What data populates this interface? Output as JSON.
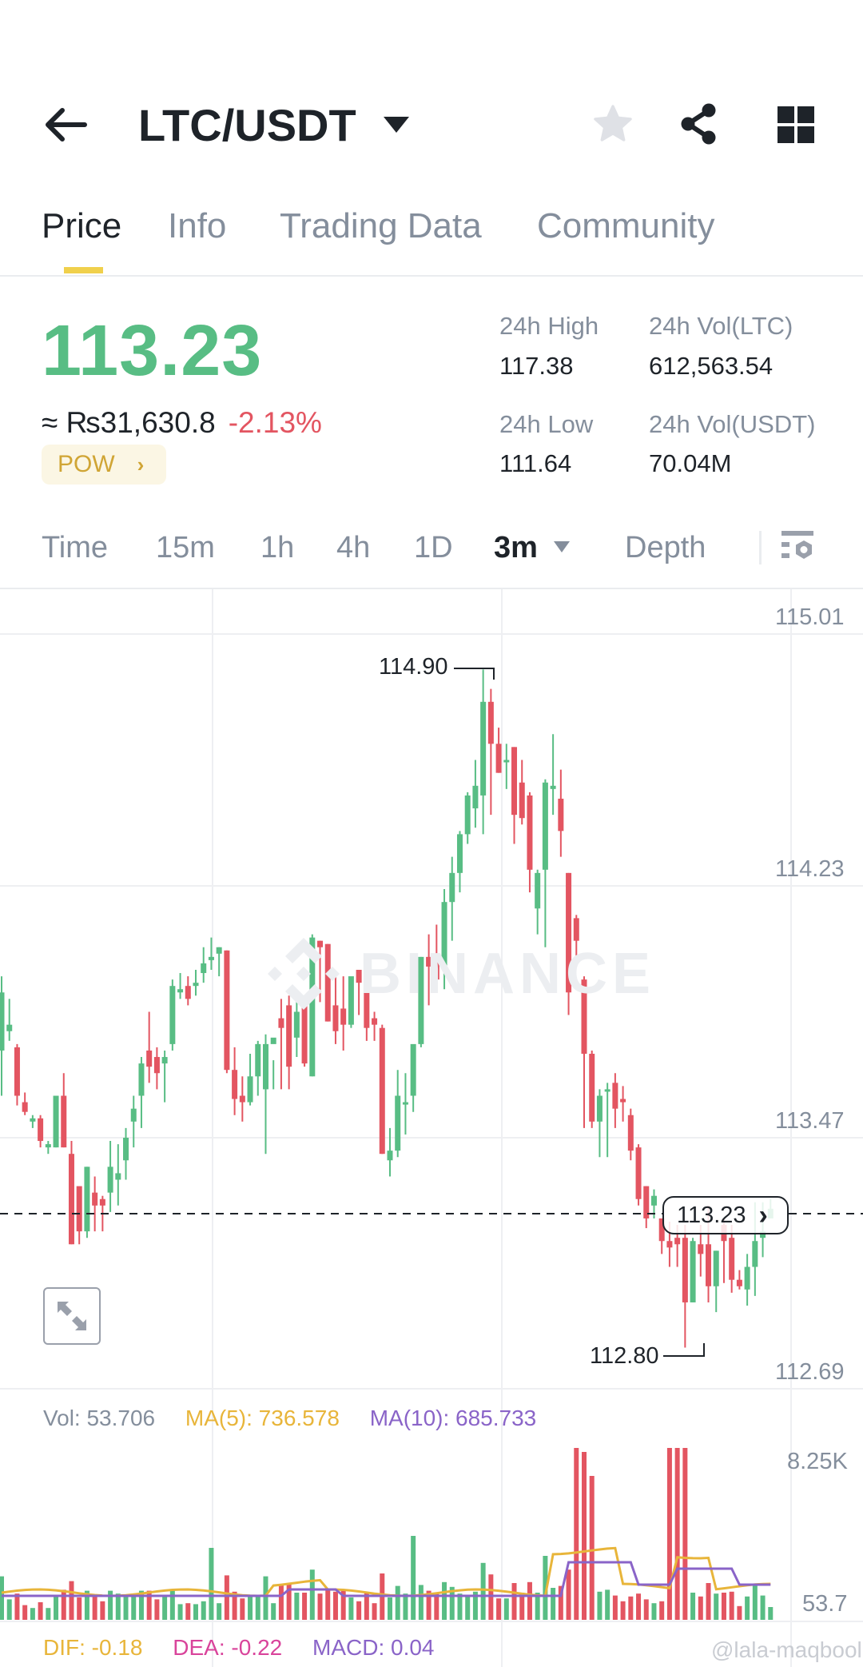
{
  "header": {
    "title": "LTC/USDT",
    "back_icon": "arrow-left-icon",
    "dropdown_icon": "caret-down-icon",
    "actions": [
      {
        "name": "favorite-star-icon"
      },
      {
        "name": "share-icon"
      },
      {
        "name": "grid-menu-icon"
      }
    ]
  },
  "tabs": [
    {
      "label": "Price",
      "active": true
    },
    {
      "label": "Info",
      "active": false
    },
    {
      "label": "Trading Data",
      "active": false
    },
    {
      "label": "Community",
      "active": false
    }
  ],
  "ticker": {
    "last_price": "113.23",
    "fiat_value": "≈ ₨31,630.8",
    "change_pct": "-2.13%",
    "tag": "POW",
    "tag_chevron": "›",
    "stats": [
      {
        "label": "24h High",
        "value": "117.38"
      },
      {
        "label": "24h Vol(LTC)",
        "value": "612,563.54"
      },
      {
        "label": "24h Low",
        "value": "111.64"
      },
      {
        "label": "24h Vol(USDT)",
        "value": "70.04M"
      }
    ]
  },
  "timeframes": [
    {
      "label": "Time",
      "active": false
    },
    {
      "label": "15m",
      "active": false
    },
    {
      "label": "1h",
      "active": false
    },
    {
      "label": "4h",
      "active": false
    },
    {
      "label": "1D",
      "active": false
    },
    {
      "label": "3m",
      "active": true,
      "dropdown": true
    },
    {
      "label": "Depth",
      "active": false
    }
  ],
  "chart": {
    "watermark": "BINANCE",
    "price_axis": [
      "115.01",
      "114.23",
      "113.47",
      "112.69"
    ],
    "high_marker": "114.90",
    "low_marker": "112.80",
    "current_price_tag": "113.23",
    "current_price_chevron": "›",
    "colors": {
      "up": "#58bd84",
      "down": "#e35561",
      "grid": "#eeeff2",
      "ma5": "#e8b53a",
      "ma10": "#8a64c8"
    }
  },
  "volume": {
    "vol_label": "Vol: 53.706",
    "ma5_label": "MA(5): 736.578",
    "ma10_label": "MA(10): 685.733",
    "axis_top": "8.25K",
    "axis_bottom": "53.7"
  },
  "macd": {
    "dif_label": "DIF: -0.18",
    "dea_label": "DEA: -0.22",
    "macd_label": "MACD: 0.04"
  },
  "watermark_user": "@lala-maqbool",
  "chart_data": {
    "type": "candlestick",
    "title": "LTC/USDT 3m",
    "ylim": [
      112.69,
      115.01
    ],
    "yticks": [
      115.01,
      114.23,
      113.47,
      112.69
    ],
    "annotations": {
      "high": 114.9,
      "low": 112.8,
      "last": 113.23
    },
    "candles": [
      {
        "o": 113.72,
        "h": 113.95,
        "l": 113.58,
        "c": 113.9
      },
      {
        "o": 113.78,
        "h": 113.88,
        "l": 113.75,
        "c": 113.8
      },
      {
        "o": 113.73,
        "h": 113.74,
        "l": 113.55,
        "c": 113.58
      },
      {
        "o": 113.56,
        "h": 113.59,
        "l": 113.52,
        "c": 113.53
      },
      {
        "o": 113.5,
        "h": 113.52,
        "l": 113.48,
        "c": 113.51
      },
      {
        "o": 113.51,
        "h": 113.52,
        "l": 113.42,
        "c": 113.44
      },
      {
        "o": 113.42,
        "h": 113.44,
        "l": 113.4,
        "c": 113.43
      },
      {
        "o": 113.42,
        "h": 113.58,
        "l": 113.42,
        "c": 113.58
      },
      {
        "o": 113.58,
        "h": 113.65,
        "l": 113.42,
        "c": 113.42
      },
      {
        "o": 113.4,
        "h": 113.44,
        "l": 113.12,
        "c": 113.12
      },
      {
        "o": 113.3,
        "h": 113.27,
        "l": 113.12,
        "c": 113.16
      },
      {
        "o": 113.16,
        "h": 113.36,
        "l": 113.14,
        "c": 113.36
      },
      {
        "o": 113.28,
        "h": 113.33,
        "l": 113.16,
        "c": 113.24
      },
      {
        "o": 113.26,
        "h": 113.27,
        "l": 113.16,
        "c": 113.24
      },
      {
        "o": 113.28,
        "h": 113.44,
        "l": 113.22,
        "c": 113.36
      },
      {
        "o": 113.32,
        "h": 113.43,
        "l": 113.24,
        "c": 113.34
      },
      {
        "o": 113.38,
        "h": 113.48,
        "l": 113.32,
        "c": 113.45
      },
      {
        "o": 113.5,
        "h": 113.58,
        "l": 113.42,
        "c": 113.54
      },
      {
        "o": 113.58,
        "h": 113.7,
        "l": 113.48,
        "c": 113.68
      },
      {
        "o": 113.72,
        "h": 113.84,
        "l": 113.62,
        "c": 113.67
      },
      {
        "o": 113.7,
        "h": 113.73,
        "l": 113.6,
        "c": 113.65
      },
      {
        "o": 113.68,
        "h": 113.72,
        "l": 113.56,
        "c": 113.7
      },
      {
        "o": 113.74,
        "h": 113.94,
        "l": 113.72,
        "c": 113.92
      },
      {
        "o": 113.9,
        "h": 113.96,
        "l": 113.88,
        "c": 113.91
      },
      {
        "o": 113.92,
        "h": 113.95,
        "l": 113.86,
        "c": 113.88
      },
      {
        "o": 113.92,
        "h": 113.97,
        "l": 113.89,
        "c": 113.93
      },
      {
        "o": 113.96,
        "h": 114.04,
        "l": 113.93,
        "c": 113.99
      },
      {
        "o": 114.0,
        "h": 114.07,
        "l": 113.97,
        "c": 114.01
      },
      {
        "o": 114.02,
        "h": 114.04,
        "l": 113.95,
        "c": 114.04
      },
      {
        "o": 114.03,
        "h": 114.03,
        "l": 113.65,
        "c": 113.66
      },
      {
        "o": 113.66,
        "h": 113.73,
        "l": 113.52,
        "c": 113.57
      },
      {
        "o": 113.58,
        "h": 113.64,
        "l": 113.5,
        "c": 113.56
      },
      {
        "o": 113.56,
        "h": 113.71,
        "l": 113.55,
        "c": 113.64
      },
      {
        "o": 113.64,
        "h": 113.75,
        "l": 113.58,
        "c": 113.74
      },
      {
        "o": 113.6,
        "h": 113.77,
        "l": 113.4,
        "c": 113.74
      },
      {
        "o": 113.74,
        "h": 113.69,
        "l": 113.6,
        "c": 113.76
      },
      {
        "o": 113.82,
        "h": 113.88,
        "l": 113.6,
        "c": 113.79
      },
      {
        "o": 113.86,
        "h": 113.89,
        "l": 113.6,
        "c": 113.67
      },
      {
        "o": 113.76,
        "h": 113.9,
        "l": 113.7,
        "c": 113.84
      },
      {
        "o": 113.87,
        "h": 113.87,
        "l": 113.67,
        "c": 113.68
      },
      {
        "o": 113.64,
        "h": 114.08,
        "l": 113.64,
        "c": 114.07
      },
      {
        "o": 114.06,
        "h": 114.06,
        "l": 113.87,
        "c": 114.04
      },
      {
        "o": 114.05,
        "h": 114.05,
        "l": 113.81,
        "c": 113.81
      },
      {
        "o": 113.86,
        "h": 113.95,
        "l": 113.74,
        "c": 113.78
      },
      {
        "o": 113.85,
        "h": 113.95,
        "l": 113.72,
        "c": 113.8
      },
      {
        "o": 113.8,
        "h": 113.94,
        "l": 113.79,
        "c": 113.95
      },
      {
        "o": 113.97,
        "h": 113.94,
        "l": 113.83,
        "c": 113.93
      },
      {
        "o": 113.93,
        "h": 113.95,
        "l": 113.75,
        "c": 113.79
      },
      {
        "o": 113.82,
        "h": 113.84,
        "l": 113.75,
        "c": 113.8
      },
      {
        "o": 113.79,
        "h": 113.8,
        "l": 113.4,
        "c": 113.4
      },
      {
        "o": 113.38,
        "h": 113.48,
        "l": 113.33,
        "c": 113.41
      },
      {
        "o": 113.41,
        "h": 113.66,
        "l": 113.39,
        "c": 113.58
      },
      {
        "o": 113.56,
        "h": 113.65,
        "l": 113.46,
        "c": 113.56
      },
      {
        "o": 113.58,
        "h": 113.72,
        "l": 113.53,
        "c": 113.74
      },
      {
        "o": 113.74,
        "h": 114.01,
        "l": 113.73,
        "c": 114.01
      },
      {
        "o": 114.01,
        "h": 114.08,
        "l": 113.86,
        "c": 113.98
      },
      {
        "o": 114.02,
        "h": 114.11,
        "l": 113.92,
        "c": 113.94
      },
      {
        "o": 113.98,
        "h": 114.22,
        "l": 113.91,
        "c": 114.18
      },
      {
        "o": 114.18,
        "h": 114.32,
        "l": 114.06,
        "c": 114.27
      },
      {
        "o": 114.27,
        "h": 114.4,
        "l": 114.21,
        "c": 114.39
      },
      {
        "o": 114.39,
        "h": 114.52,
        "l": 114.36,
        "c": 114.51
      },
      {
        "o": 114.47,
        "h": 114.62,
        "l": 114.41,
        "c": 114.54
      },
      {
        "o": 114.51,
        "h": 114.9,
        "l": 114.39,
        "c": 114.8
      },
      {
        "o": 114.8,
        "h": 114.84,
        "l": 114.45,
        "c": 114.67
      },
      {
        "o": 114.67,
        "h": 114.72,
        "l": 114.58,
        "c": 114.58
      },
      {
        "o": 114.62,
        "h": 114.67,
        "l": 114.53,
        "c": 114.62
      },
      {
        "o": 114.66,
        "h": 114.66,
        "l": 114.36,
        "c": 114.45
      },
      {
        "o": 114.55,
        "h": 114.62,
        "l": 114.42,
        "c": 114.44
      },
      {
        "o": 114.51,
        "h": 114.52,
        "l": 114.21,
        "c": 114.28
      },
      {
        "o": 114.16,
        "h": 114.28,
        "l": 114.08,
        "c": 114.27
      },
      {
        "o": 114.28,
        "h": 114.56,
        "l": 114.04,
        "c": 114.55
      },
      {
        "o": 114.53,
        "h": 114.7,
        "l": 114.45,
        "c": 114.54
      },
      {
        "o": 114.5,
        "h": 114.59,
        "l": 114.32,
        "c": 114.4
      },
      {
        "o": 114.27,
        "h": 114.27,
        "l": 113.83,
        "c": 113.9
      },
      {
        "o": 114.13,
        "h": 114.14,
        "l": 114.01,
        "c": 114.06
      },
      {
        "o": 113.94,
        "h": 113.95,
        "l": 113.48,
        "c": 113.71
      },
      {
        "o": 113.71,
        "h": 113.72,
        "l": 113.48,
        "c": 113.5
      },
      {
        "o": 113.5,
        "h": 113.6,
        "l": 113.39,
        "c": 113.58
      },
      {
        "o": 113.6,
        "h": 113.62,
        "l": 113.39,
        "c": 113.6
      },
      {
        "o": 113.62,
        "h": 113.65,
        "l": 113.48,
        "c": 113.54
      },
      {
        "o": 113.57,
        "h": 113.61,
        "l": 113.5,
        "c": 113.56
      },
      {
        "o": 113.52,
        "h": 113.54,
        "l": 113.38,
        "c": 113.41
      },
      {
        "o": 113.42,
        "h": 113.43,
        "l": 113.24,
        "c": 113.26
      },
      {
        "o": 113.3,
        "h": 113.3,
        "l": 113.17,
        "c": 113.2
      },
      {
        "o": 113.24,
        "h": 113.29,
        "l": 113.2,
        "c": 113.27
      },
      {
        "o": 113.2,
        "h": 113.2,
        "l": 113.09,
        "c": 113.13
      },
      {
        "o": 113.13,
        "h": 113.19,
        "l": 113.05,
        "c": 113.11
      },
      {
        "o": 113.14,
        "h": 113.18,
        "l": 113.05,
        "c": 113.12
      },
      {
        "o": 113.14,
        "h": 113.18,
        "l": 112.8,
        "c": 112.94
      },
      {
        "o": 112.94,
        "h": 113.14,
        "l": 112.94,
        "c": 113.13
      },
      {
        "o": 113.12,
        "h": 113.18,
        "l": 113.02,
        "c": 113.09
      },
      {
        "o": 113.12,
        "h": 113.24,
        "l": 112.94,
        "c": 112.99
      },
      {
        "o": 112.99,
        "h": 113.1,
        "l": 112.91,
        "c": 113.1
      },
      {
        "o": 113.18,
        "h": 113.2,
        "l": 113.0,
        "c": 113.13
      },
      {
        "o": 113.14,
        "h": 113.18,
        "l": 112.97,
        "c": 113.01
      },
      {
        "o": 113.01,
        "h": 113.04,
        "l": 112.98,
        "c": 112.99
      },
      {
        "o": 112.98,
        "h": 113.09,
        "l": 112.93,
        "c": 113.05
      },
      {
        "o": 113.05,
        "h": 113.25,
        "l": 112.96,
        "c": 113.13
      },
      {
        "o": 113.14,
        "h": 113.25,
        "l": 113.08,
        "c": 113.16
      },
      {
        "o": 113.2,
        "h": 113.26,
        "l": 113.21,
        "c": 113.23
      }
    ],
    "volume": {
      "ylim": [
        53.7,
        8250
      ],
      "series": [
        {
          "name": "MA(5)",
          "last": 736.578
        },
        {
          "name": "MA(10)",
          "last": 685.733
        }
      ]
    },
    "macd": {
      "DIF": -0.18,
      "DEA": -0.22,
      "MACD": 0.04
    }
  }
}
